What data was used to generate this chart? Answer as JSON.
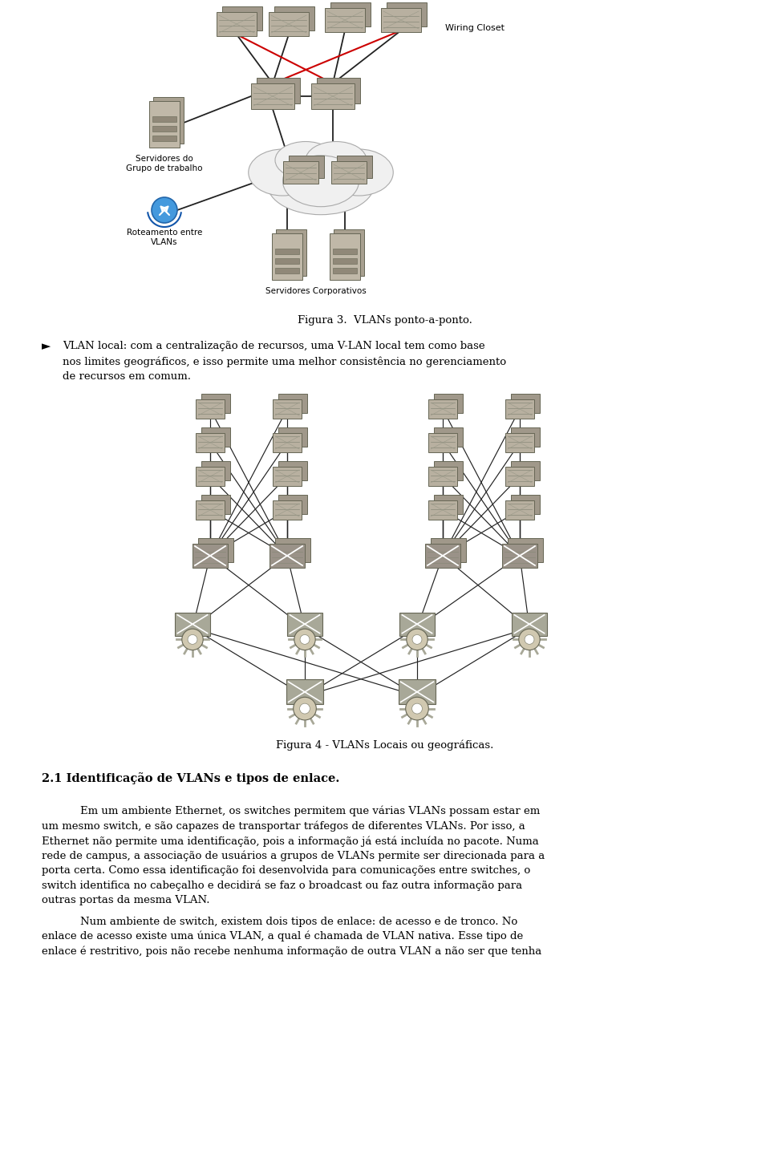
{
  "bg_color": "#ffffff",
  "fig3_caption": "Figura 3.  VLANs ponto-a-ponto.",
  "fig4_caption": "Figura 4 - VLANs Locais ou geográficas.",
  "section_heading": "2.1 Identificação de VLANs e tipos de enlace.",
  "bullet_symbol": "►",
  "bullet_text_line1": "VLAN local: com a centralização de recursos, uma V-LAN local tem como base",
  "bullet_text_line2": "nos limites geográficos, e isso permite uma melhor consistência no gerenciamento",
  "bullet_text_line3": "de recursos em comum.",
  "paragraph1_line1": "Em um ambiente Ethernet, os switches permitem que várias VLANs possam estar em",
  "paragraph1_line2": "um mesmo switch, e são capazes de transportar tráfegos de diferentes VLANs. Por isso, a",
  "paragraph1_line3": "Ethernet não permite uma identificação, pois a informação já está incluída no pacote. Numa",
  "paragraph1_line4": "rede de campus, a associação de usuários a grupos de VLANs permite ser direcionada para a",
  "paragraph1_line5": "porta certa. Como essa identificação foi desenvolvida para comunicações entre switches, o",
  "paragraph1_line6": "switch identifica no cabeçalho e decidirá se faz o broadcast ou faz outra informação para",
  "paragraph1_line7": "outras portas da mesma VLAN.",
  "paragraph2_line1": "Num ambiente de switch, existem dois tipos de enlace: de acesso e de tronco. No",
  "paragraph2_line2": "enlace de acesso existe uma única VLAN, a qual é chamada de VLAN nativa. Esse tipo de",
  "paragraph2_line3": "enlace é restritivo, pois não recebe nenhuma informação de outra VLAN a não ser que tenha",
  "label_wiring_closet": "Wiring Closet",
  "label_servidores_grupo": "Servidores do\nGrupo de trabalho",
  "label_roteamento": "Roteamento entre\nVLANs",
  "label_servidores_corp": "Servidores Corporativos",
  "font_size_caption": 9.5,
  "font_size_heading": 10.5,
  "font_size_body": 9.5,
  "font_size_label": 7.5,
  "switch_color": "#b8b0a0",
  "switch_edge": "#666655",
  "server_color": "#c0b8a8",
  "server_edge": "#666655",
  "line_color": "#222222",
  "red_line_color": "#cc0000"
}
